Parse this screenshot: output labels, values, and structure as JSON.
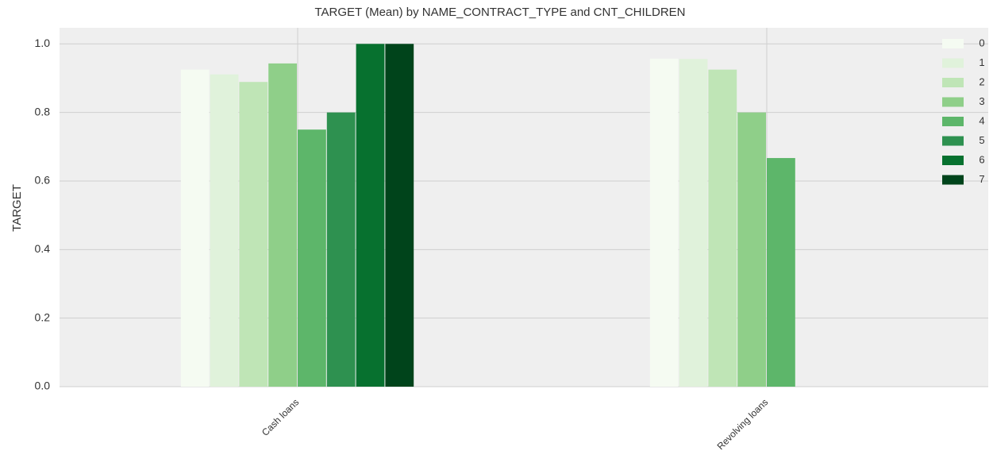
{
  "chart_data": {
    "type": "bar",
    "title": "TARGET (Mean) by NAME_CONTRACT_TYPE and CNT_CHILDREN",
    "y_label": "TARGET",
    "categories": [
      "Cash loans",
      "Revolving loans"
    ],
    "series": [
      {
        "name": "0",
        "color": "#f5fbf2",
        "values": [
          0.925,
          0.957
        ]
      },
      {
        "name": "1",
        "color": "#e0f2db",
        "values": [
          0.911,
          0.956
        ]
      },
      {
        "name": "2",
        "color": "#bfe5b6",
        "values": [
          0.889,
          0.925
        ]
      },
      {
        "name": "3",
        "color": "#8fcf89",
        "values": [
          0.943,
          0.8
        ]
      },
      {
        "name": "4",
        "color": "#5db66a",
        "values": [
          0.75,
          0.667
        ]
      },
      {
        "name": "5",
        "color": "#2e9150",
        "values": [
          0.8,
          null
        ]
      },
      {
        "name": "6",
        "color": "#07712f",
        "values": [
          1.0,
          null
        ]
      },
      {
        "name": "7",
        "color": "#00441b",
        "values": [
          1.0,
          null
        ]
      }
    ],
    "ylim": [
      0,
      1.047
    ],
    "yticks": [
      {
        "value": 0,
        "label": "0.0"
      },
      0.2,
      0.4,
      0.6,
      0.8,
      {
        "value": 1,
        "label": "1.0"
      }
    ],
    "grid": true,
    "legend": "upper right"
  }
}
